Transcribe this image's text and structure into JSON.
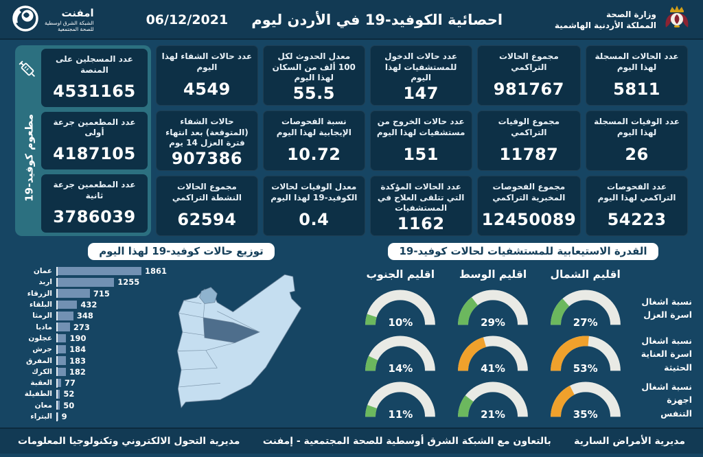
{
  "header": {
    "ministry": {
      "line1": "وزارة الصحة",
      "line2": "المملكة الأردنية الهاشمية"
    },
    "title": "احصائية الكوفيد-19 في الأردن ليوم",
    "date": "06/12/2021",
    "emphnet": {
      "name": "امفنت",
      "sub1": "الشبكة الشرق اوسطية",
      "sub2": "للصحة المجتمعية"
    }
  },
  "stats_columns": [
    {
      "cards": [
        {
          "label": "عدد الحالات المسجلة لهذا اليوم",
          "value": "5811"
        },
        {
          "label": "عدد الوفيات المسجلة لهذا اليوم",
          "value": "26"
        },
        {
          "label": "عدد الفحوصات التراكمي لهذا اليوم",
          "value": "54223"
        }
      ]
    },
    {
      "cards": [
        {
          "label": "مجموع الحالات التراكمي",
          "value": "981767"
        },
        {
          "label": "مجموع الوفيات التراكمي",
          "value": "11787"
        },
        {
          "label": "مجموع الفحوصات المخبرية التراكمي",
          "value": "12450089"
        }
      ]
    },
    {
      "cards": [
        {
          "label": "عدد حالات الدخول للمستشفيات لهذا اليوم",
          "value": "147"
        },
        {
          "label": "عدد حالات الخروج من مستشفيات لهذا اليوم",
          "value": "151"
        },
        {
          "label": "عدد الحالات المؤكدة التي تتلقى العلاج في المستشفيات",
          "value": "1162"
        }
      ]
    },
    {
      "cards": [
        {
          "label": "معدل الحدوث لكل 100 ألف من السكان لهذا اليوم",
          "value": "55.5"
        },
        {
          "label": "نسبة الفحوصات الإيجابية لهذا اليوم",
          "value": "10.72"
        },
        {
          "label": "معدل الوفيات لحالات الكوفيد-19 لهذا اليوم",
          "value": "0.4"
        }
      ]
    },
    {
      "cards": [
        {
          "label": "عدد حالات الشفاء لهذا اليوم",
          "value": "4549"
        },
        {
          "label": "حالات الشفاء (المتوقعة) بعد انتهاء فترة العزل 14 يوم",
          "value": "907386"
        },
        {
          "label": "مجموع الحالات النشطة التراكمي",
          "value": "62594"
        }
      ]
    }
  ],
  "vaccination": {
    "side_label": "مطعوم كوفيد-19",
    "cards": [
      {
        "label": "عدد المسجلين على المنصة",
        "value": "4531165"
      },
      {
        "label": "عدد المطعمين جرعة أولى",
        "value": "4187105"
      },
      {
        "label": "عدد المطعمين جرعة ثانية",
        "value": "3786039"
      }
    ]
  },
  "chart_data": [
    {
      "type": "bar",
      "title": "توزيع حالات كوفيد-19 لهذا اليوم",
      "categories": [
        "عمان",
        "اربد",
        "الزرقاء",
        "البلقاء",
        "الرمثا",
        "مادبا",
        "عجلون",
        "جرش",
        "المفرق",
        "الكرك",
        "العقبة",
        "الطفيلة",
        "معان",
        "البتراء"
      ],
      "values": [
        1861,
        1255,
        715,
        432,
        348,
        273,
        190,
        184,
        183,
        182,
        77,
        52,
        50,
        9
      ],
      "xlabel": "",
      "ylabel": "",
      "bar_color": "#7291B3",
      "legend": "none",
      "grid": "off"
    },
    {
      "type": "gauge-grid",
      "title": "القدرة الاستيعابية للمستشفيات لحالات كوفيد-19",
      "regions": [
        "اقليم الشمال",
        "اقليم الوسط",
        "اقليم الجنوب"
      ],
      "rows": [
        {
          "label": "نسبة اشغال اسرة العزل",
          "values": [
            27,
            29,
            10
          ],
          "levels": [
            "green",
            "green",
            "green"
          ]
        },
        {
          "label": "نسبة اشغال اسرة العناية الحثيثة",
          "values": [
            53,
            41,
            14
          ],
          "levels": [
            "orange",
            "orange",
            "green"
          ]
        },
        {
          "label": "نسبة اشغال اجهزة التنفس",
          "values": [
            35,
            21,
            11
          ],
          "levels": [
            "green",
            "green",
            "green"
          ],
          "levels_fix": [
            "orange",
            "green",
            "green"
          ]
        }
      ],
      "range": [
        0,
        100
      ]
    }
  ],
  "footer": {
    "right": "مديرية الأمراض السارية",
    "center": "بالتعاون مع الشبكة الشرق أوسطية للصحة المجتمعية - إمفنت",
    "left": "مديرية التحول الالكتروني وتكنولوجيا المعلومات"
  },
  "colors": {
    "green": "#6CB85E",
    "orange": "#F0A12C",
    "track": "#E9EAE5",
    "bar": "#7291B3",
    "accent_teal": "#2C7080",
    "card_bg": "#0D3046",
    "page_bg": "#164563"
  }
}
